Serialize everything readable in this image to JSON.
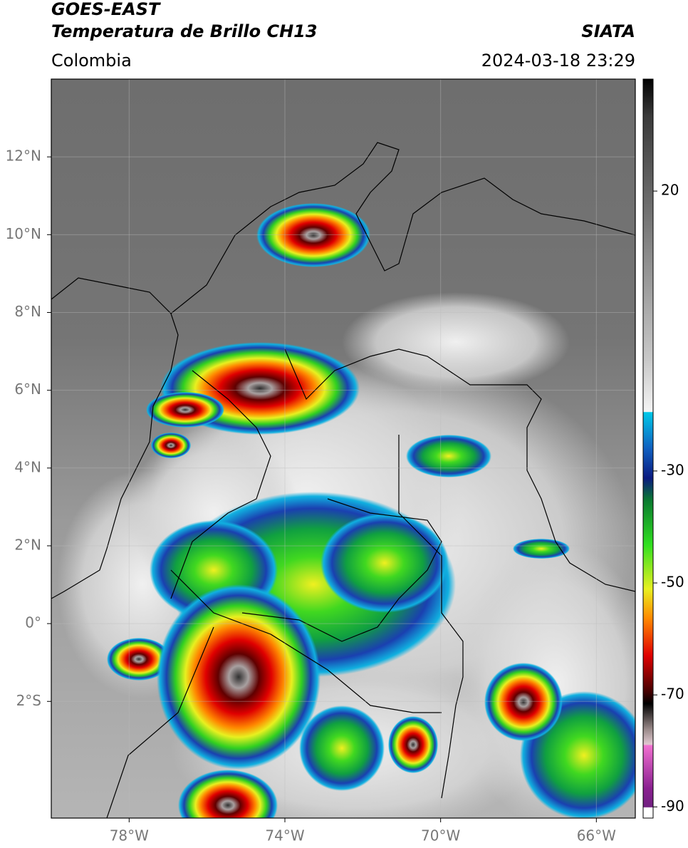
{
  "header": {
    "satellite": "GOES-EAST",
    "product": "Temperatura de Brillo CH13",
    "source": "SIATA",
    "region": "Colombia",
    "datetime": "2024-03-18 23:29"
  },
  "map": {
    "lon_range": [
      -80,
      -65
    ],
    "lat_range": [
      -5,
      14
    ],
    "lon_ticks": [
      {
        "value": -78,
        "label": "78°W"
      },
      {
        "value": -74,
        "label": "74°W"
      },
      {
        "value": -70,
        "label": "70°W"
      },
      {
        "value": -66,
        "label": "66°W"
      }
    ],
    "lat_ticks": [
      {
        "value": 12,
        "label": "12°N"
      },
      {
        "value": 10,
        "label": "10°N"
      },
      {
        "value": 8,
        "label": "8°N"
      },
      {
        "value": 6,
        "label": "6°N"
      },
      {
        "value": 4,
        "label": "4°N"
      },
      {
        "value": 2,
        "label": "2°N"
      },
      {
        "value": 0,
        "label": "0°"
      },
      {
        "value": -2,
        "label": "2°S"
      }
    ]
  },
  "colorbar": {
    "range": [
      -92,
      40
    ],
    "ticks": [
      20,
      -30,
      -50,
      -70,
      -90
    ]
  }
}
